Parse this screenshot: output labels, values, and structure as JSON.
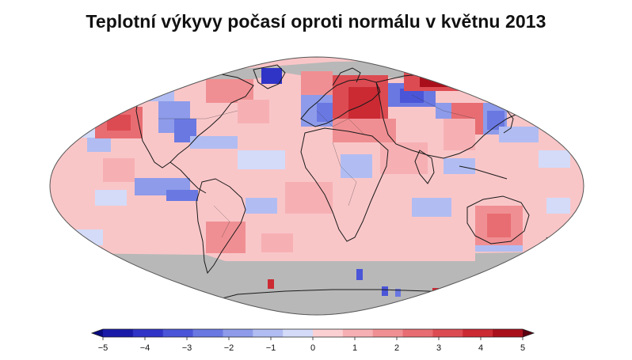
{
  "title": "Teplotní výkyvy počasí oproti normálu v květnu 2013",
  "colors": {
    "ocean_missing": "#b8b8b8",
    "map_border": "#555555",
    "coast": "#1a1a1a",
    "scale": [
      "#1a1aa8",
      "#2f33c6",
      "#4a55d8",
      "#6a78e2",
      "#8d9bea",
      "#b1bdf2",
      "#d3dbf8",
      "#fbd0d2",
      "#f6b0b3",
      "#f08f93",
      "#e86d72",
      "#dd4b52",
      "#cb2a33",
      "#a90f1b"
    ]
  },
  "legend": {
    "ticks": [
      -5,
      -4,
      -3,
      -2,
      -1,
      0,
      1,
      2,
      3,
      4,
      5
    ],
    "min": -5,
    "max": 5
  }
}
